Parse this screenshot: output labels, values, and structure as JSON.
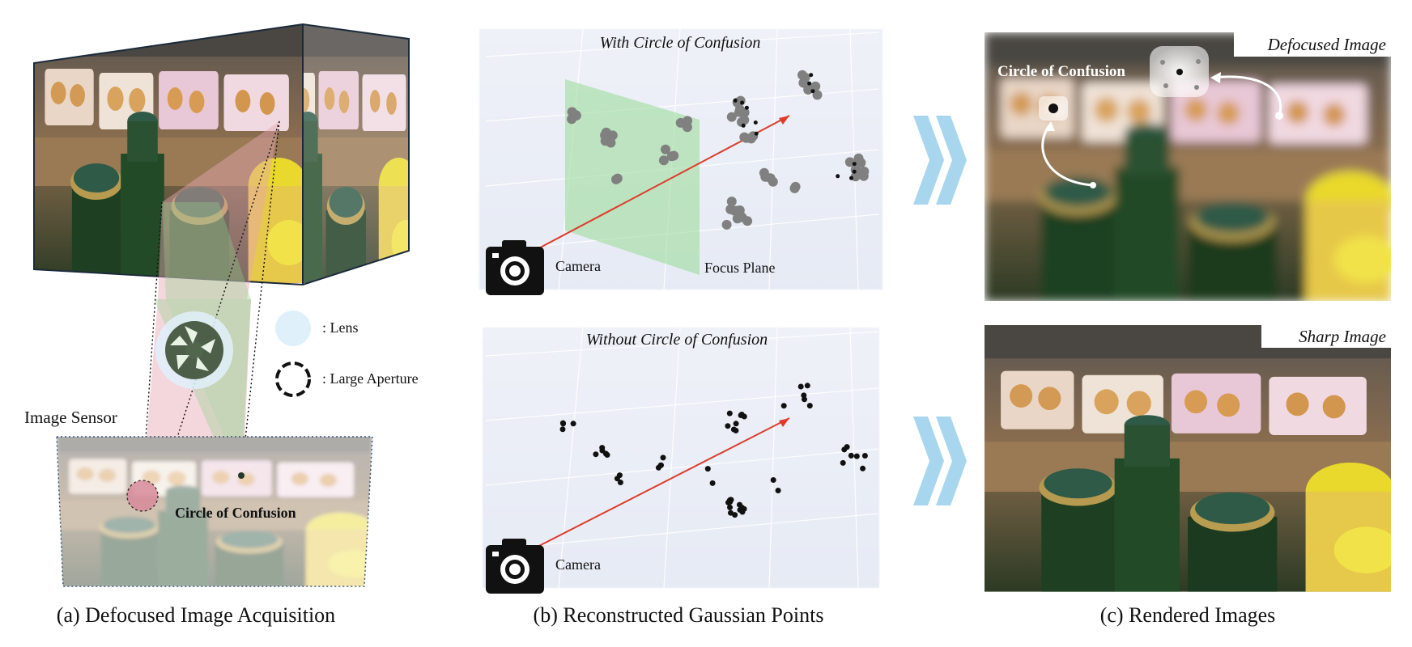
{
  "panel_a": {
    "caption": "(a) Defocused Image Acquisition",
    "sensor_label": "Image Sensor",
    "coc_label": "Circle of Confusion",
    "legend": [
      {
        "icon": "lens-icon",
        "label": ": Lens"
      },
      {
        "icon": "aperture-icon",
        "label": ": Large Aperture"
      }
    ]
  },
  "panel_b": {
    "caption": "(b) Reconstructed Gaussian Points",
    "top_title": "With Circle of Confusion",
    "bottom_title": "Without Circle of Confusion",
    "camera_label_top": "Camera",
    "camera_label_bottom": "Camera",
    "focus_plane_label": "Focus Plane"
  },
  "panel_c": {
    "caption": "(c) Rendered Images",
    "top_label": "Defocused Image",
    "bottom_label": "Sharp Image",
    "coc_label": "Circle of Confusion"
  },
  "colors": {
    "lens": "#dff0fb",
    "arrow_chevron": "#a9d6ef",
    "focus_plane": "#9fdc9c",
    "cone_green": "#8fd08a",
    "cone_red": "#e7a7b4",
    "camera_ray": "#e03a2a"
  }
}
